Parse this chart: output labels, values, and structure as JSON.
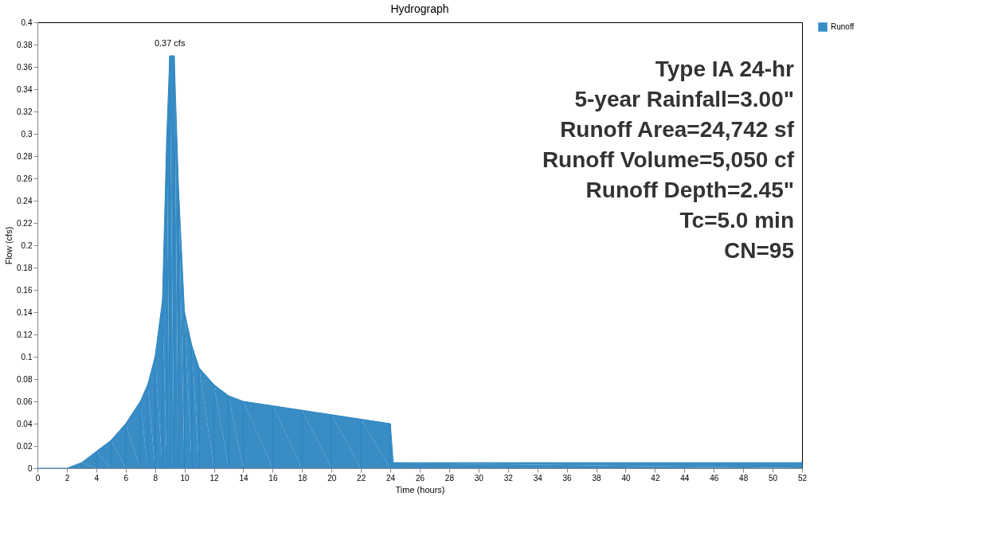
{
  "chart_data": {
    "type": "area",
    "title": "Hydrograph",
    "xlabel": "Time (hours)",
    "ylabel": "Flow (cfs)",
    "x": [
      0,
      2,
      3,
      4,
      5,
      6,
      7,
      7.5,
      8,
      8.5,
      8.8,
      9,
      9.3,
      9.6,
      10,
      10.5,
      11,
      12,
      13,
      14,
      16,
      18,
      20,
      22,
      24,
      24.2,
      52
    ],
    "series": [
      {
        "name": "Runoff",
        "color": "#2e86c1",
        "values": [
          0,
          0.0,
          0.005,
          0.015,
          0.025,
          0.04,
          0.06,
          0.075,
          0.1,
          0.15,
          0.3,
          0.37,
          0.37,
          0.25,
          0.14,
          0.11,
          0.09,
          0.075,
          0.065,
          0.06,
          0.056,
          0.052,
          0.048,
          0.044,
          0.04,
          0.005,
          0.005
        ]
      }
    ],
    "xlim": [
      0,
      52
    ],
    "xticks": [
      0,
      2,
      4,
      6,
      8,
      10,
      12,
      14,
      16,
      18,
      20,
      22,
      24,
      26,
      28,
      30,
      32,
      34,
      36,
      38,
      40,
      42,
      44,
      46,
      48,
      50,
      52
    ],
    "ylim": [
      0,
      0.4
    ],
    "yticks": [
      0,
      0.02,
      0.04,
      0.06,
      0.08,
      0.1,
      0.12,
      0.14,
      0.16,
      0.18,
      0.2,
      0.22,
      0.24,
      0.26,
      0.28,
      0.3,
      0.32,
      0.34,
      0.36,
      0.38,
      0.4
    ],
    "annotations": [
      {
        "text": "0.37 cfs",
        "x": 9,
        "y": 0.37
      },
      "Type IA 24-hr",
      "5-year Rainfall=3.00\"",
      "Runoff Area=24,742 sf",
      "Runoff Volume=5,050 cf",
      "Runoff Depth=2.45\"",
      "Tc=5.0 min",
      "CN=95"
    ],
    "grid": false,
    "legend": "top right"
  }
}
